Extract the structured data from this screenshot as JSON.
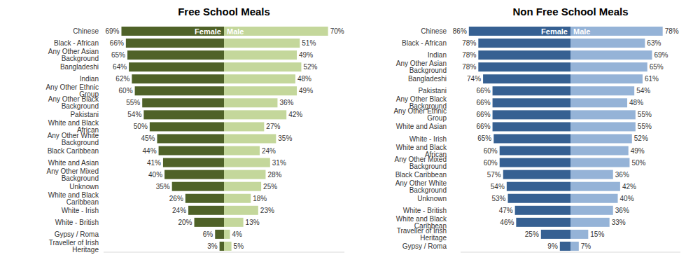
{
  "chart_data": [
    {
      "type": "bar",
      "title": "Free School Meals",
      "orientation": "horizontal",
      "data_labels": true,
      "tick_labels": "y",
      "categories": [
        "Chinese",
        "Black - African",
        "Any Other Asian Background",
        "Bangladeshi",
        "Indian",
        "Any Other Ethnic Group",
        "Any Other Black Background",
        "Pakistani",
        "White and Black African",
        "Any Other White Background",
        "Black Caribbean",
        "White and Asian",
        "Any Other Mixed Background",
        "Unknown",
        "White and Black Caribbean",
        "White - Irish",
        "White - British",
        "Gypsy / Roma",
        "Traveller of Irish Heritage"
      ],
      "xlim": [
        0,
        81
      ],
      "series": [
        {
          "name": "Female",
          "color": "#4f6228",
          "values": [
            69,
            66,
            65,
            64,
            62,
            60,
            55,
            54,
            50,
            45,
            44,
            41,
            40,
            35,
            26,
            24,
            20,
            6,
            3
          ],
          "value_labels": [
            "69%",
            "66%",
            "65%",
            "64%",
            "62%",
            "60%",
            "55%",
            "54%",
            "50%",
            "45%",
            "44%",
            "41%",
            "40%",
            "35%",
            "26%",
            "24%",
            "20%",
            "6%",
            "3%"
          ]
        },
        {
          "name": "Male",
          "color": "#c4d79b",
          "values": [
            70,
            51,
            49,
            52,
            48,
            49,
            36,
            42,
            27,
            35,
            24,
            31,
            28,
            25,
            18,
            23,
            13,
            4,
            5
          ],
          "value_labels": [
            "70%",
            "51%",
            "49%",
            "52%",
            "48%",
            "49%",
            "36%",
            "42%",
            "27%",
            "35%",
            "24%",
            "31%",
            "28%",
            "25%",
            "18%",
            "23%",
            "13%",
            "4%",
            "5%"
          ]
        }
      ]
    },
    {
      "type": "bar",
      "title": "Non Free School Meals",
      "orientation": "horizontal",
      "data_labels": true,
      "tick_labels": "y",
      "categories": [
        "Chinese",
        "Black - African",
        "Indian",
        "Any Other Asian Background",
        "Bangladeshi",
        "Pakistani",
        "Any Other Black Background",
        "Any Other Ethnic Group",
        "White and Asian",
        "White - Irish",
        "White and Black African",
        "Any Other Mixed Background",
        "Black Caribbean",
        "Any Other White Background",
        "Unknown",
        "White - British",
        "White and Black Caribbean",
        "Traveller of Irish Heritage",
        "Gypsy / Roma"
      ],
      "xlim": [
        0,
        93
      ],
      "series": [
        {
          "name": "Female",
          "color": "#366092",
          "values": [
            86,
            78,
            78,
            78,
            74,
            66,
            66,
            66,
            66,
            65,
            60,
            60,
            57,
            54,
            53,
            47,
            46,
            25,
            9
          ],
          "value_labels": [
            "86%",
            "78%",
            "78%",
            "78%",
            "74%",
            "66%",
            "66%",
            "66%",
            "66%",
            "65%",
            "60%",
            "60%",
            "57%",
            "54%",
            "53%",
            "47%",
            "46%",
            "25%",
            "9%"
          ]
        },
        {
          "name": "Male",
          "color": "#95b3d7",
          "values": [
            78,
            63,
            69,
            65,
            61,
            54,
            48,
            55,
            55,
            52,
            49,
            50,
            36,
            42,
            40,
            36,
            33,
            15,
            7
          ],
          "value_labels": [
            "78%",
            "63%",
            "69%",
            "65%",
            "61%",
            "54%",
            "48%",
            "55%",
            "55%",
            "52%",
            "49%",
            "50%",
            "36%",
            "42%",
            "40%",
            "36%",
            "33%",
            "15%",
            "7%"
          ]
        }
      ]
    }
  ]
}
